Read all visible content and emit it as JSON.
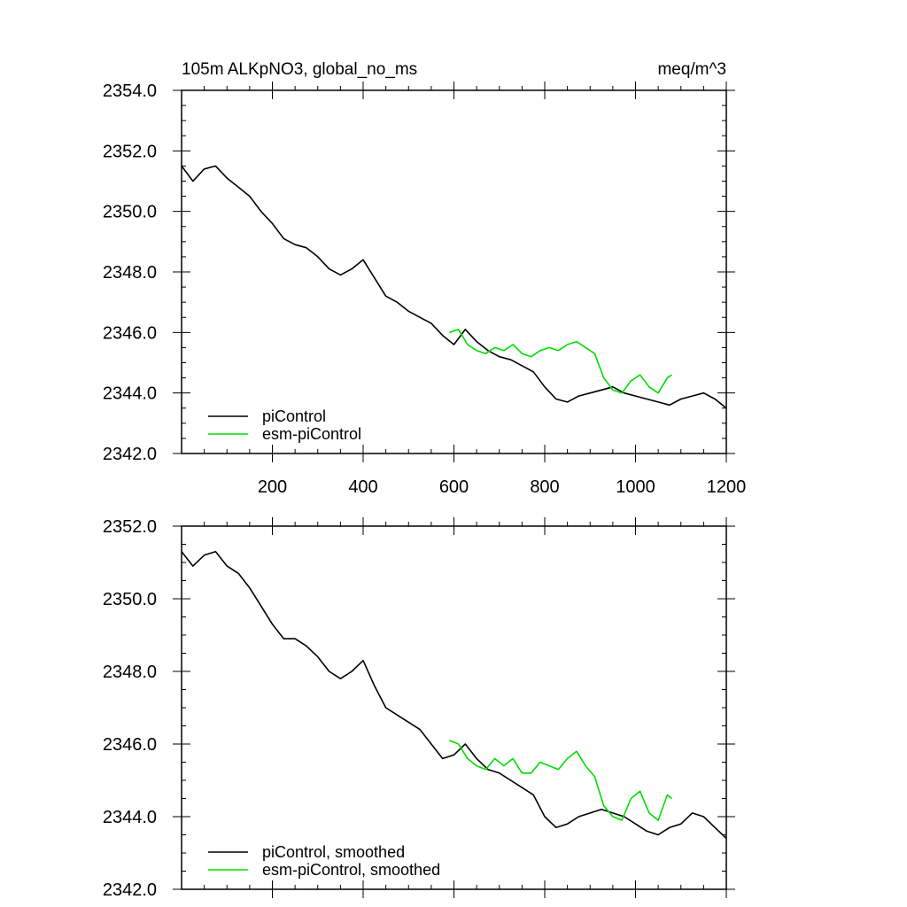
{
  "chart_data": [
    {
      "type": "line",
      "title": "105m ALKpNO3, global_no_ms",
      "units": "meq/m^3",
      "xlim": [
        0,
        1200
      ],
      "ylim": [
        2342,
        2354
      ],
      "xticks": [
        "200",
        "400",
        "600",
        "800",
        "1000",
        "1200"
      ],
      "yticks": [
        "2342.0",
        "2344.0",
        "2346.0",
        "2348.0",
        "2350.0",
        "2352.0",
        "2354.0"
      ],
      "legend_position": "bottom-left",
      "series": [
        {
          "name": "piControl",
          "color": "#000000",
          "x": [
            0,
            25,
            50,
            75,
            100,
            125,
            150,
            175,
            200,
            225,
            250,
            275,
            300,
            325,
            350,
            375,
            400,
            425,
            450,
            475,
            500,
            525,
            550,
            575,
            600,
            625,
            650,
            675,
            700,
            725,
            750,
            775,
            800,
            825,
            850,
            875,
            900,
            925,
            950,
            975,
            1000,
            1025,
            1050,
            1075,
            1100,
            1125,
            1150,
            1175,
            1200
          ],
          "y": [
            2351.5,
            2351.0,
            2351.4,
            2351.5,
            2351.1,
            2350.8,
            2350.5,
            2350.0,
            2349.6,
            2349.1,
            2348.9,
            2348.8,
            2348.5,
            2348.1,
            2347.9,
            2348.1,
            2348.4,
            2347.8,
            2347.2,
            2347.0,
            2346.7,
            2346.5,
            2346.3,
            2345.9,
            2345.6,
            2346.1,
            2345.7,
            2345.4,
            2345.2,
            2345.1,
            2344.9,
            2344.7,
            2344.2,
            2343.8,
            2343.7,
            2343.9,
            2344.0,
            2344.1,
            2344.2,
            2344.0,
            2343.9,
            2343.8,
            2343.7,
            2343.6,
            2343.8,
            2343.9,
            2344.0,
            2343.8,
            2343.5
          ]
        },
        {
          "name": "esm-piControl",
          "color": "#00dd00",
          "x": [
            590,
            610,
            630,
            650,
            670,
            690,
            710,
            730,
            750,
            770,
            790,
            810,
            830,
            850,
            870,
            890,
            910,
            930,
            950,
            970,
            990,
            1010,
            1030,
            1050,
            1070,
            1080
          ],
          "y": [
            2346.0,
            2346.1,
            2345.6,
            2345.4,
            2345.3,
            2345.5,
            2345.4,
            2345.6,
            2345.3,
            2345.2,
            2345.4,
            2345.5,
            2345.4,
            2345.6,
            2345.7,
            2345.5,
            2345.3,
            2344.5,
            2344.1,
            2344.0,
            2344.4,
            2344.6,
            2344.2,
            2344.0,
            2344.5,
            2344.6
          ]
        }
      ]
    },
    {
      "type": "line",
      "xlim": [
        0,
        1200
      ],
      "ylim": [
        2342,
        2352
      ],
      "yticks": [
        "2342.0",
        "2344.0",
        "2346.0",
        "2348.0",
        "2350.0",
        "2352.0"
      ],
      "legend_position": "bottom-left",
      "series": [
        {
          "name": "piControl, smoothed",
          "color": "#000000",
          "x": [
            0,
            25,
            50,
            75,
            100,
            125,
            150,
            175,
            200,
            225,
            250,
            275,
            300,
            325,
            350,
            375,
            400,
            425,
            450,
            475,
            500,
            525,
            550,
            575,
            600,
            625,
            650,
            675,
            700,
            725,
            750,
            775,
            800,
            825,
            850,
            875,
            900,
            925,
            950,
            975,
            1000,
            1025,
            1050,
            1075,
            1100,
            1125,
            1150,
            1175,
            1200
          ],
          "y": [
            2351.3,
            2350.9,
            2351.2,
            2351.3,
            2350.9,
            2350.7,
            2350.3,
            2349.8,
            2349.3,
            2348.9,
            2348.9,
            2348.7,
            2348.4,
            2348.0,
            2347.8,
            2348.0,
            2348.3,
            2347.6,
            2347.0,
            2346.8,
            2346.6,
            2346.4,
            2346.0,
            2345.6,
            2345.7,
            2346.0,
            2345.6,
            2345.3,
            2345.2,
            2345.0,
            2344.8,
            2344.6,
            2344.0,
            2343.7,
            2343.8,
            2344.0,
            2344.1,
            2344.2,
            2344.1,
            2344.0,
            2343.8,
            2343.6,
            2343.5,
            2343.7,
            2343.8,
            2344.1,
            2344.0,
            2343.7,
            2343.4
          ]
        },
        {
          "name": "esm-piControl, smoothed",
          "color": "#00dd00",
          "x": [
            590,
            610,
            630,
            650,
            670,
            690,
            710,
            730,
            750,
            770,
            790,
            810,
            830,
            850,
            870,
            890,
            910,
            930,
            950,
            970,
            990,
            1010,
            1030,
            1050,
            1070,
            1080
          ],
          "y": [
            2346.1,
            2346.0,
            2345.6,
            2345.4,
            2345.3,
            2345.6,
            2345.4,
            2345.6,
            2345.2,
            2345.2,
            2345.5,
            2345.4,
            2345.3,
            2345.6,
            2345.8,
            2345.4,
            2345.1,
            2344.3,
            2344.0,
            2343.9,
            2344.5,
            2344.7,
            2344.1,
            2343.9,
            2344.6,
            2344.5
          ]
        }
      ]
    }
  ]
}
